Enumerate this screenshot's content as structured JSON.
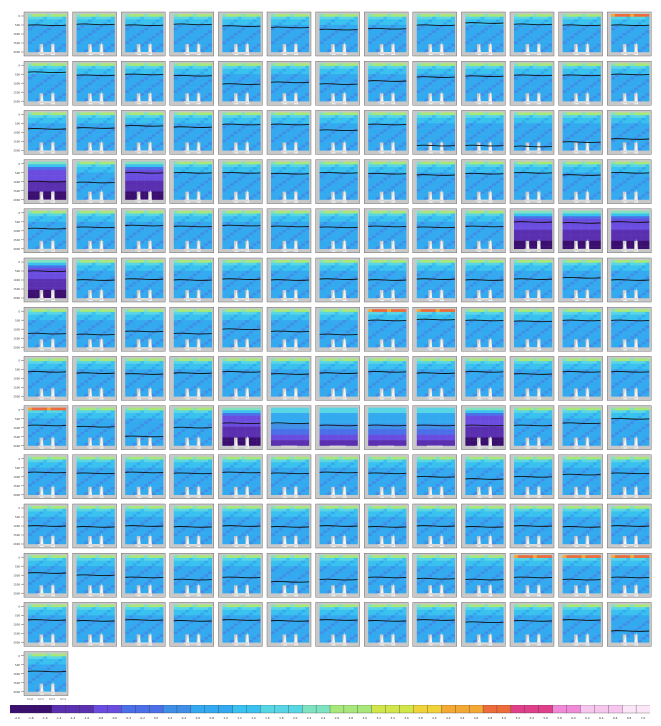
{
  "chart_data": {
    "type": "heatmap",
    "layout": {
      "rows": 14,
      "cols": 13,
      "panel_count": 170
    },
    "colormap": [
      "#3b0f70",
      "#5a2fb0",
      "#6a4de0",
      "#4a6fe8",
      "#3f8fe8",
      "#33aaf0",
      "#39c2f0",
      "#58d6e6",
      "#7fe3c2",
      "#a8e87a",
      "#d2e64a",
      "#f0d23a",
      "#f5a935",
      "#ee6b3a",
      "#e0408a",
      "#f08ad8",
      "#f7c6ee",
      "#fbe6f7"
    ],
    "colorbar_ticks": [
      "-2.0",
      "-1.8",
      "-1.6",
      "-1.4",
      "-1.2",
      "-1.0",
      "-0.8",
      "-0.6",
      "-0.4",
      "-0.2",
      "0.0",
      "0.2",
      "0.4",
      "0.6",
      "0.8",
      "1.0",
      "1.2",
      "1.4",
      "1.6",
      "1.8",
      "2.0",
      "2.2",
      "2.4",
      "2.6",
      "2.8",
      "3.0",
      "3.2",
      "3.4",
      "3.6",
      "3.8",
      "4.0",
      "4.2",
      "4.4",
      "4.6",
      "4.8",
      "5.0",
      "5.2",
      "5.4",
      "5.6",
      "5.8",
      "6.0",
      "6.2",
      "6.4",
      "6.6",
      "6.8",
      "7.0"
    ],
    "y_tick_labels": [
      "0",
      "500",
      "1000",
      "1500",
      "2000",
      "2500",
      "3000"
    ],
    "x_tick_labels": [
      "2020",
      "2021",
      "2022",
      "2023"
    ],
    "special_panels": {
      "deep_purple": [
        [
          3,
          0
        ],
        [
          3,
          2
        ],
        [
          4,
          10
        ],
        [
          4,
          11
        ],
        [
          4,
          12
        ],
        [
          5,
          0
        ],
        [
          8,
          4
        ],
        [
          8,
          9
        ]
      ],
      "wide_band_row8": [
        5,
        6,
        7,
        8
      ],
      "warm_top": [
        [
          0,
          12
        ],
        [
          6,
          7
        ],
        [
          6,
          8
        ],
        [
          11,
          10
        ],
        [
          11,
          11
        ],
        [
          11,
          12
        ],
        [
          8,
          0
        ]
      ]
    },
    "mixed_layer_depth_fraction": [
      [
        0.3,
        0.28,
        0.3,
        0.28,
        0.32,
        0.35,
        0.4,
        0.38,
        0.3,
        0.25,
        0.28,
        0.3,
        0.3
      ],
      [
        0.25,
        0.32,
        0.3,
        0.33,
        0.52,
        0.48,
        0.52,
        0.45,
        0.36,
        0.34,
        0.32,
        0.32,
        0.3
      ],
      [
        0.42,
        0.4,
        0.35,
        0.38,
        0.32,
        0.32,
        0.45,
        0.32,
        0.8,
        0.8,
        0.82,
        0.72,
        0.65
      ],
      [
        0.5,
        0.52,
        0.3,
        0.3,
        0.3,
        0.32,
        0.3,
        0.32,
        0.35,
        0.32,
        0.3,
        0.35,
        0.3
      ],
      [
        0.45,
        0.42,
        0.38,
        0.4,
        0.38,
        0.4,
        0.42,
        0.4,
        0.42,
        0.4,
        0.3,
        0.32,
        0.3
      ],
      [
        0.3,
        0.5,
        0.48,
        0.5,
        0.48,
        0.5,
        0.48,
        0.5,
        0.48,
        0.5,
        0.48,
        0.45,
        0.5
      ],
      [
        0.6,
        0.62,
        0.55,
        0.6,
        0.5,
        0.55,
        0.62,
        0.3,
        0.28,
        0.3,
        0.32,
        0.3,
        0.3
      ],
      [
        0.35,
        0.38,
        0.4,
        0.38,
        0.35,
        0.4,
        0.38,
        0.35,
        0.38,
        0.35,
        0.4,
        0.35,
        0.35
      ],
      [
        0.45,
        0.48,
        0.7,
        0.5,
        0.4,
        0.4,
        0.45,
        0.45,
        0.45,
        0.45,
        0.45,
        0.4,
        0.3
      ],
      [
        0.4,
        0.42,
        0.4,
        0.42,
        0.4,
        0.42,
        0.4,
        0.42,
        0.5,
        0.55,
        0.5,
        0.45,
        0.42
      ],
      [
        0.5,
        0.52,
        0.5,
        0.52,
        0.5,
        0.52,
        0.5,
        0.52,
        0.5,
        0.52,
        0.5,
        0.52,
        0.5
      ],
      [
        0.45,
        0.5,
        0.55,
        0.6,
        0.55,
        0.65,
        0.6,
        0.55,
        0.58,
        0.6,
        0.55,
        0.6,
        0.55
      ],
      [
        0.4,
        0.42,
        0.4,
        0.42,
        0.4,
        0.42,
        0.4,
        0.42,
        0.4,
        0.45,
        0.42,
        0.4,
        0.65
      ],
      [
        0.45
      ]
    ]
  }
}
